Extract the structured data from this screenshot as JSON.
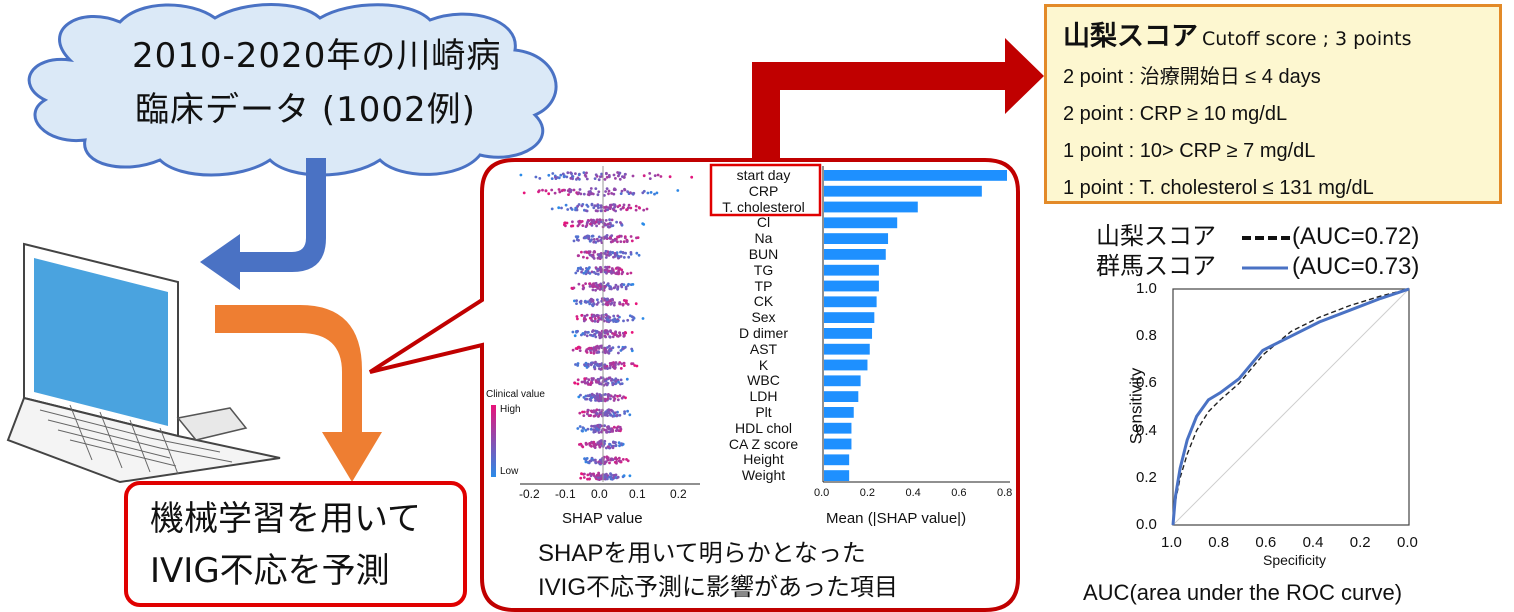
{
  "cloud": {
    "line1": "2010-2020年の川崎病",
    "line2": "臨床データ (1002例)"
  },
  "ml_box": {
    "line1": "機械学習を用いて",
    "line2": "IVIG不応を予測"
  },
  "shap_caption": {
    "line1": "SHAPを用いて明らかとなった",
    "line2": "IVIG不応予測に影響があった項目"
  },
  "features": [
    "start day",
    "CRP",
    "T. cholesterol",
    "Cl",
    "Na",
    "BUN",
    "TG",
    "TP",
    "CK",
    "Sex",
    "D dimer",
    "AST",
    "K",
    "WBC",
    "LDH",
    "Plt",
    "HDL chol",
    "CA Z score",
    "Height",
    "Weight"
  ],
  "beeswarm": {
    "xlabel": "SHAP value",
    "ticks": [
      "-0.2",
      "-0.1",
      "0.0",
      "0.1",
      "0.2"
    ],
    "colorbar": {
      "title": "Clinical value",
      "high": "High",
      "low": "Low",
      "color_high": "#e8137a",
      "color_low": "#2a8be8"
    }
  },
  "score_box": {
    "title": "山梨スコア",
    "cutoff": "Cutoff score ; 3 points",
    "lines": [
      "2 point : 治療開始日 ≤ 4 days",
      "2 point : CRP ≥ 10 mg/dL",
      "1 point : 10> CRP ≥ 7 mg/dL",
      "1 point : T. cholesterol ≤ 131 mg/dL"
    ]
  },
  "roc_legend": {
    "line1_name": "山梨スコア",
    "line1_auc": "(AUC=0.72)",
    "line2_name": "群馬スコア",
    "line2_auc": "(AUC=0.73)"
  },
  "auc_caption": "AUC(area under the ROC curve)",
  "colors": {
    "arrow_blue": "#4a72c4",
    "arrow_orange": "#ee7e32",
    "arrow_red": "#c00000",
    "bar_blue": "#1e90ff",
    "box_red": "#e00000",
    "score_border": "#e38a28",
    "score_bg": "#fdf7d0",
    "cloud_fill": "#dbe9f7",
    "cloud_stroke": "#4a72c4"
  },
  "chart_data": [
    {
      "type": "bar",
      "orientation": "horizontal",
      "categories": [
        "start day",
        "CRP",
        "T. cholesterol",
        "Cl",
        "Na",
        "BUN",
        "TG",
        "TP",
        "CK",
        "Sex",
        "D dimer",
        "AST",
        "K",
        "WBC",
        "LDH",
        "Plt",
        "HDL chol",
        "CA Z score",
        "Height",
        "Weight"
      ],
      "values": [
        0.8,
        0.69,
        0.41,
        0.32,
        0.28,
        0.27,
        0.24,
        0.24,
        0.23,
        0.22,
        0.21,
        0.2,
        0.19,
        0.16,
        0.15,
        0.13,
        0.12,
        0.12,
        0.11,
        0.11
      ],
      "xlabel": "Mean (|SHAP value|)",
      "xticks": [
        "0.0",
        "0.2",
        "0.4",
        "0.6",
        "0.8"
      ],
      "xlim": [
        0,
        0.8
      ]
    },
    {
      "type": "line",
      "xlabel": "Specificity",
      "ylabel": "Sensitivity",
      "xticks": [
        "1.0",
        "0.8",
        "0.6",
        "0.4",
        "0.2",
        "0.0"
      ],
      "yticks": [
        "0.0",
        "0.2",
        "0.4",
        "0.6",
        "0.8",
        "1.0"
      ],
      "xlim": [
        1.0,
        0.0
      ],
      "ylim": [
        0.0,
        1.0
      ],
      "series": [
        {
          "name": "山梨スコア",
          "style": "dashed",
          "color": "#222222",
          "x": [
            1.0,
            0.99,
            0.97,
            0.94,
            0.9,
            0.85,
            0.8,
            0.72,
            0.62,
            0.5,
            0.38,
            0.25,
            0.12,
            0.0
          ],
          "y": [
            0.0,
            0.1,
            0.2,
            0.3,
            0.4,
            0.48,
            0.53,
            0.6,
            0.72,
            0.82,
            0.88,
            0.93,
            0.97,
            1.0
          ]
        },
        {
          "name": "群馬スコア",
          "style": "solid",
          "color": "#4a72c4",
          "x": [
            1.0,
            0.99,
            0.97,
            0.94,
            0.9,
            0.85,
            0.8,
            0.72,
            0.62,
            0.5,
            0.38,
            0.25,
            0.12,
            0.0
          ],
          "y": [
            0.0,
            0.12,
            0.24,
            0.36,
            0.46,
            0.53,
            0.56,
            0.62,
            0.74,
            0.8,
            0.86,
            0.91,
            0.96,
            1.0
          ]
        }
      ]
    }
  ]
}
